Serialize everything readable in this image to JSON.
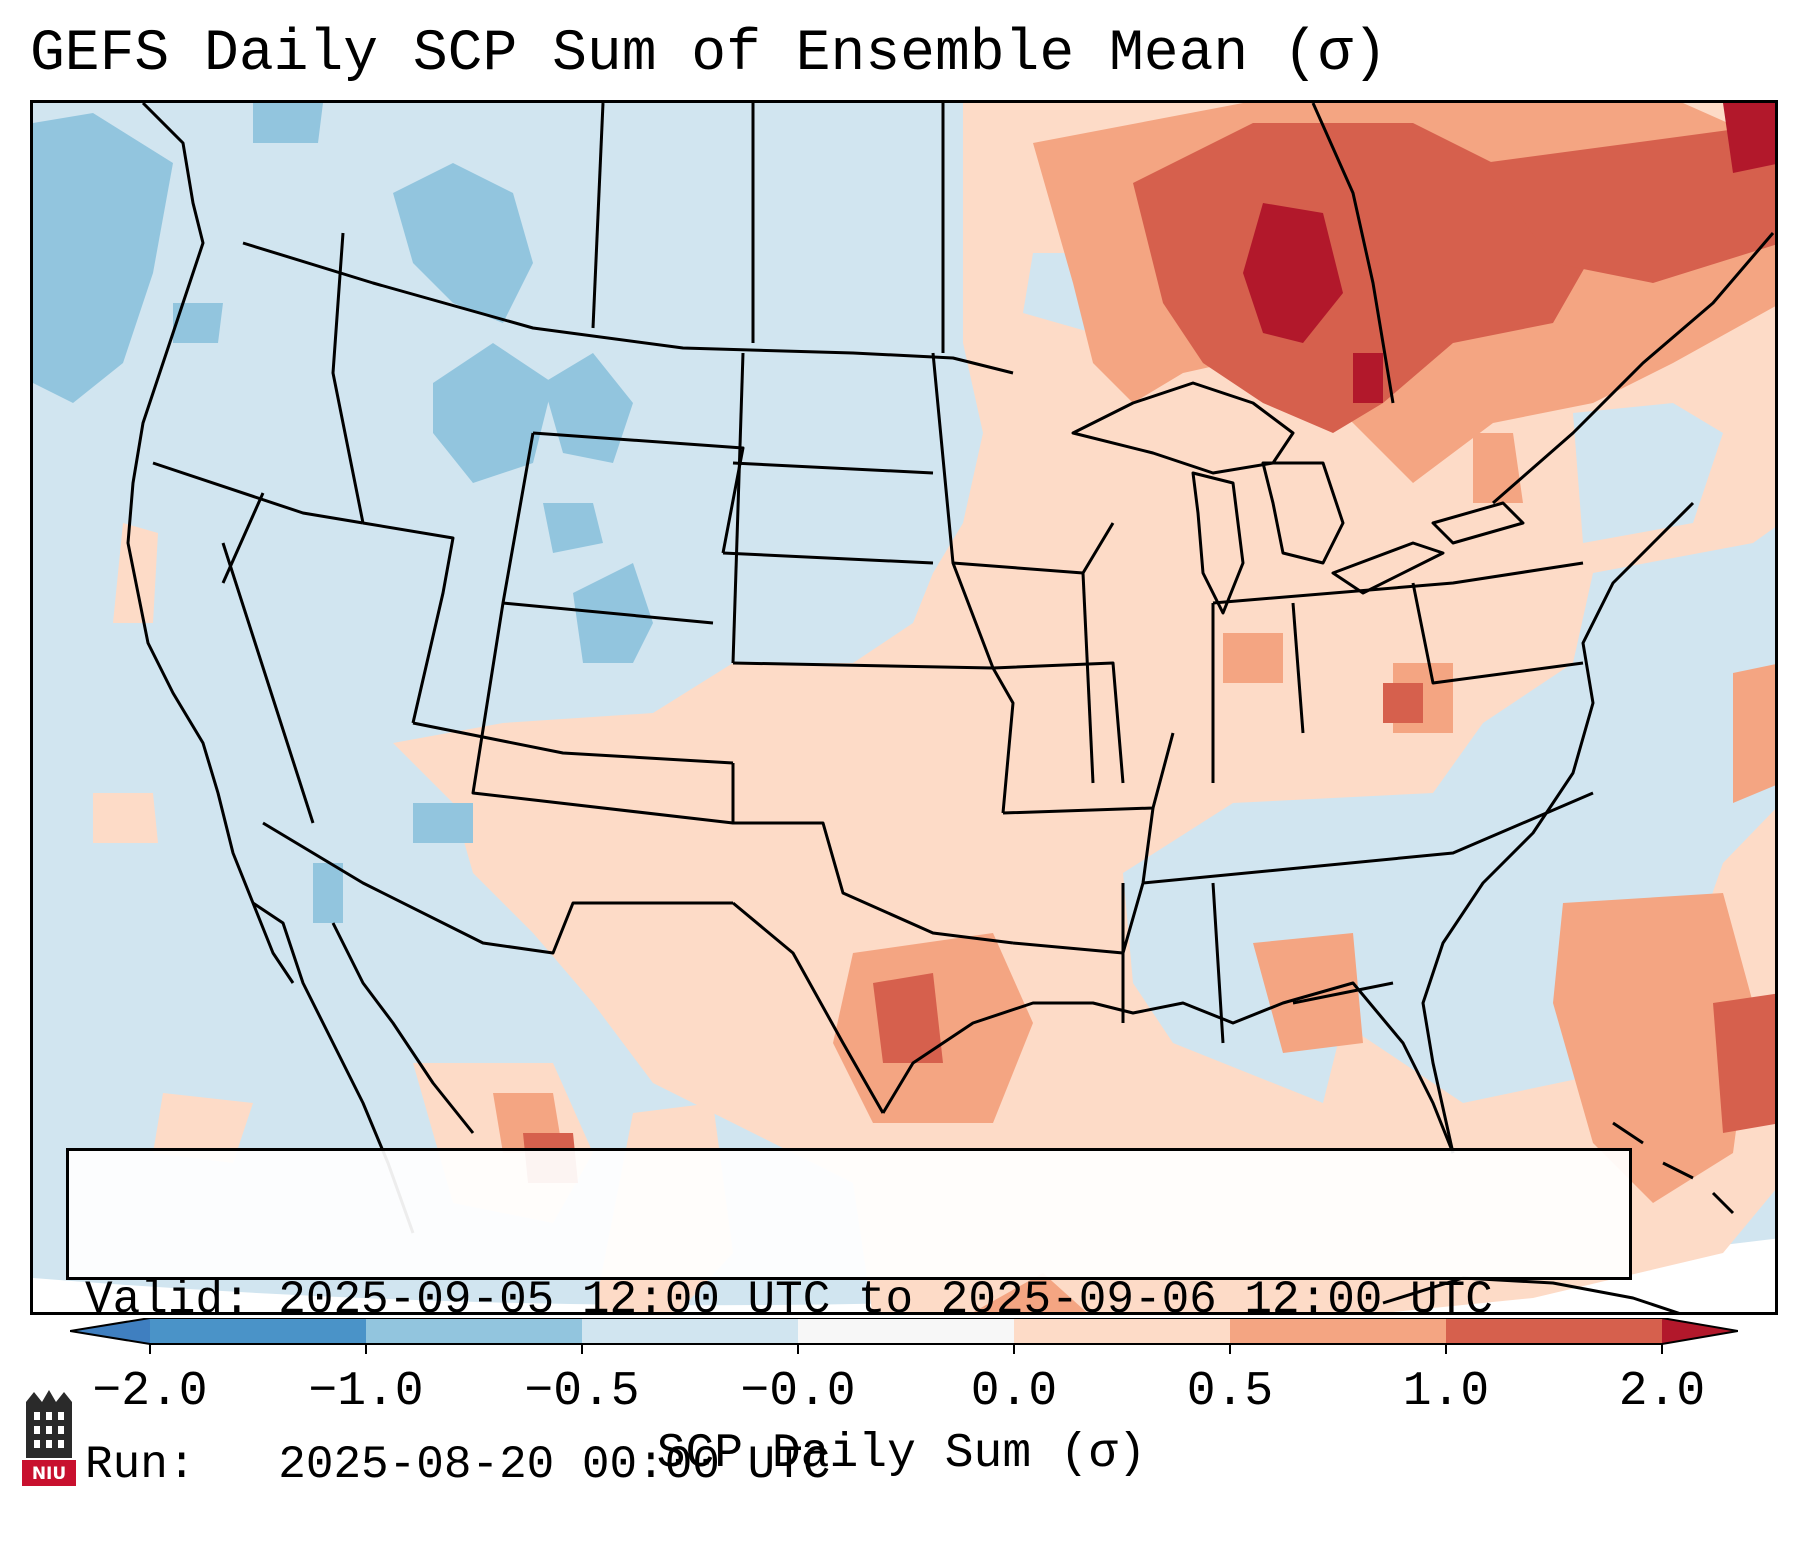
{
  "title": "GEFS Daily SCP Sum of Ensemble Mean (σ)",
  "info": {
    "valid_line": "Valid: 2025-09-05 12:00 UTC to 2025-09-06 12:00 UTC",
    "run_line": "Run:   2025-08-20 00:00 UTC"
  },
  "colorbar": {
    "label": "SCP Daily Sum (σ)",
    "ticks": [
      "−2.0",
      "−1.0",
      "−0.5",
      "−0.0",
      "0.0",
      "0.5",
      "1.0",
      "2.0"
    ],
    "bins": [
      {
        "name": "below -2.0 (extend)",
        "color": "#3f7fc0"
      },
      {
        "name": "-2.0 to -1.0",
        "color": "#4a93c8"
      },
      {
        "name": "-1.0 to -0.5",
        "color": "#92c5de"
      },
      {
        "name": "-0.5 to -0.0",
        "color": "#d1e5f0"
      },
      {
        "name": "-0.0 to 0.0",
        "color": "#f7f7f7"
      },
      {
        "name": "0.0 to 0.5",
        "color": "#fddbc7"
      },
      {
        "name": "0.5 to 1.0",
        "color": "#f4a582"
      },
      {
        "name": "1.0 to 2.0",
        "color": "#d6604d"
      },
      {
        "name": "above 2.0 (extend)",
        "color": "#b2182b"
      }
    ]
  },
  "logo": {
    "text": "NIU",
    "color": "#c8102e"
  },
  "map": {
    "background_color": "#d1e5f0",
    "boundary_color": "#000000"
  }
}
